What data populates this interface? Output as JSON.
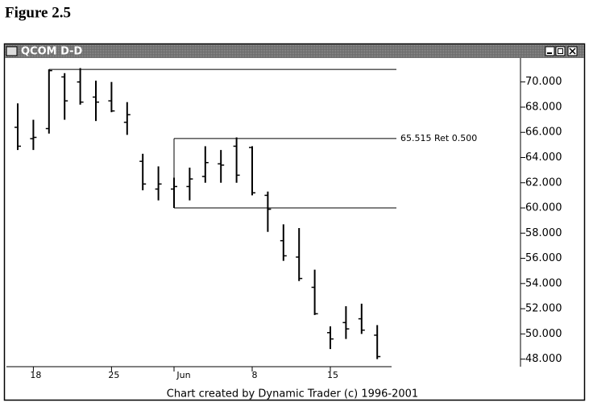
{
  "figure_label": "Figure 2.5",
  "chart_data": {
    "type": "ohlc",
    "title": "QCOM D-D",
    "footer": "Chart created by Dynamic Trader (c) 1996-2001",
    "categories": [
      null,
      "18",
      null,
      null,
      null,
      null,
      "25",
      null,
      null,
      null,
      "Jun",
      null,
      null,
      null,
      null,
      "8",
      null,
      null,
      null,
      null,
      "15",
      null,
      null,
      null
    ],
    "open": [
      66.4,
      65.5,
      66.3,
      70.4,
      70.0,
      68.8,
      68.5,
      66.8,
      63.7,
      61.5,
      61.5,
      61.7,
      62.5,
      63.5,
      64.9,
      64.8,
      61.0,
      57.4,
      56.1,
      53.7,
      50.1,
      50.9,
      51.2,
      49.9
    ],
    "high": [
      68.3,
      67.0,
      71.0,
      70.7,
      71.1,
      70.1,
      70.0,
      68.4,
      64.3,
      63.3,
      62.4,
      63.2,
      64.9,
      64.6,
      65.6,
      64.9,
      61.3,
      58.7,
      58.4,
      55.1,
      50.6,
      52.2,
      52.4,
      50.7
    ],
    "low": [
      64.6,
      64.6,
      65.9,
      67.0,
      68.2,
      66.9,
      67.6,
      65.8,
      61.4,
      60.6,
      60.0,
      60.6,
      62.0,
      62.0,
      62.0,
      61.0,
      58.1,
      55.8,
      54.2,
      51.5,
      48.8,
      49.6,
      50.0,
      48.0
    ],
    "close": [
      64.9,
      65.6,
      70.9,
      68.5,
      68.4,
      68.4,
      67.7,
      67.4,
      61.9,
      61.9,
      61.7,
      62.3,
      63.6,
      63.4,
      62.6,
      61.2,
      59.9,
      56.2,
      54.4,
      51.6,
      49.6,
      50.4,
      50.3,
      48.2
    ],
    "color": "#000000",
    "ylim": [
      47.4,
      71.9
    ],
    "yticks": [
      {
        "value": 48,
        "label": "48.000"
      },
      {
        "value": 50,
        "label": "50.000"
      },
      {
        "value": 52,
        "label": "52.000"
      },
      {
        "value": 54,
        "label": "54.000"
      },
      {
        "value": 56,
        "label": "56.000"
      },
      {
        "value": 58,
        "label": "58.000"
      },
      {
        "value": 60,
        "label": "60.000"
      },
      {
        "value": 62,
        "label": "62.000"
      },
      {
        "value": 64,
        "label": "64.000"
      },
      {
        "value": 66,
        "label": "66.000"
      },
      {
        "value": 68,
        "label": "68.000"
      },
      {
        "value": 70,
        "label": "70.000"
      }
    ],
    "retracement": {
      "high": 71.0,
      "high_index": 2,
      "low": 60.0,
      "low_index": 10,
      "level": 65.515,
      "level_label": "65.515 Ret 0.500"
    }
  }
}
